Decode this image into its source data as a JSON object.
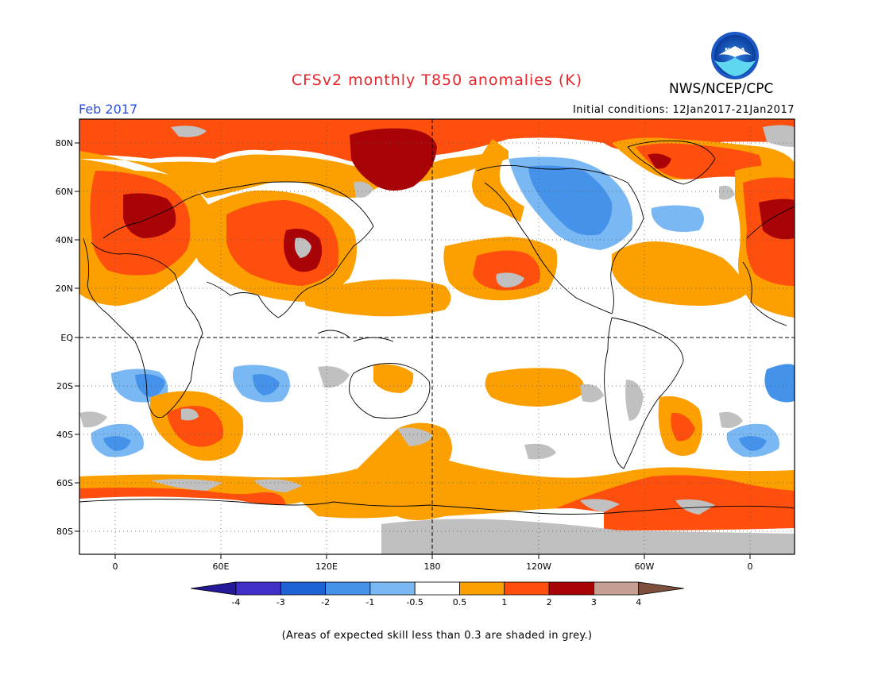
{
  "header": {
    "title": "CFSv2 monthly T850 anomalies (K)",
    "agency": "NWS/NCEP/CPC",
    "logo_text": "NOAA",
    "month": "Feb 2017",
    "initial_conditions": "Initial conditions: 12Jan2017-21Jan2017"
  },
  "map": {
    "lat_labels": [
      "80N",
      "60N",
      "40N",
      "20N",
      "EQ",
      "20S",
      "40S",
      "60S",
      "80S"
    ],
    "lon_labels": [
      "0",
      "60E",
      "120E",
      "180",
      "120W",
      "60W",
      "0"
    ],
    "projection": "cylindrical, 0 to 360 wrap",
    "gridlines": "dotted",
    "grey_meaning": "expected skill less than 0.3"
  },
  "colorbar": {
    "tick_labels": [
      "-4",
      "-3",
      "-2",
      "-1",
      "-0.5",
      "0.5",
      "1",
      "2",
      "3",
      "4"
    ],
    "colors": [
      "#241a99",
      "#4030c8",
      "#1e63d6",
      "#4592ea",
      "#7ab8f4",
      "#ffffff",
      "#fba000",
      "#ff4f0e",
      "#a80306",
      "#c59f91",
      "#7d4f3c"
    ]
  },
  "footnote": "(Areas of expected skill less than 0.3 are shaded in grey.)"
}
